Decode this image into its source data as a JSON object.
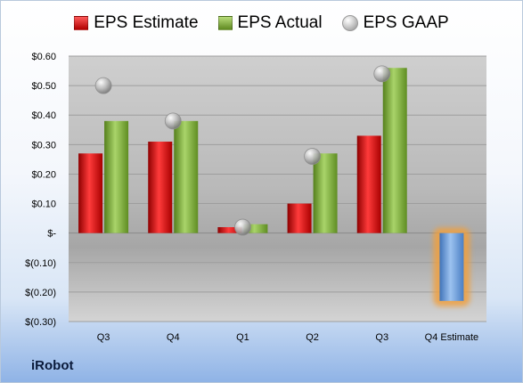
{
  "legend": {
    "estimate": "EPS Estimate",
    "actual": "EPS Actual",
    "gaap": "EPS GAAP"
  },
  "company": "iRobot",
  "colors": {
    "estimate": "#c00000",
    "actual": "#76a32f",
    "gaap": "#b0b0b0",
    "forecast": "#6f9fd8",
    "forecast_glow": "#f0a040"
  },
  "chart_data": {
    "type": "bar",
    "categories": [
      "Q3",
      "Q4",
      "Q1",
      "Q2",
      "Q3",
      "Q4 Estimate"
    ],
    "series": [
      {
        "name": "EPS Estimate",
        "values": [
          0.27,
          0.31,
          0.02,
          0.1,
          0.33,
          null
        ]
      },
      {
        "name": "EPS Actual",
        "values": [
          0.38,
          0.38,
          0.03,
          0.27,
          0.56,
          -0.23
        ]
      },
      {
        "name": "EPS GAAP",
        "values": [
          0.5,
          0.38,
          0.02,
          0.26,
          0.54,
          null
        ]
      }
    ],
    "ylim": [
      -0.3,
      0.6
    ],
    "yticks": [
      -0.3,
      -0.2,
      -0.1,
      0,
      0.1,
      0.2,
      0.3,
      0.4,
      0.5,
      0.6
    ],
    "ytick_labels": [
      "$(0.30)",
      "$(0.20)",
      "$(0.10)",
      "$-",
      "$0.10",
      "$0.20",
      "$0.30",
      "$0.40",
      "$0.50",
      "$0.60"
    ],
    "grid": true,
    "legend_position": "top"
  }
}
